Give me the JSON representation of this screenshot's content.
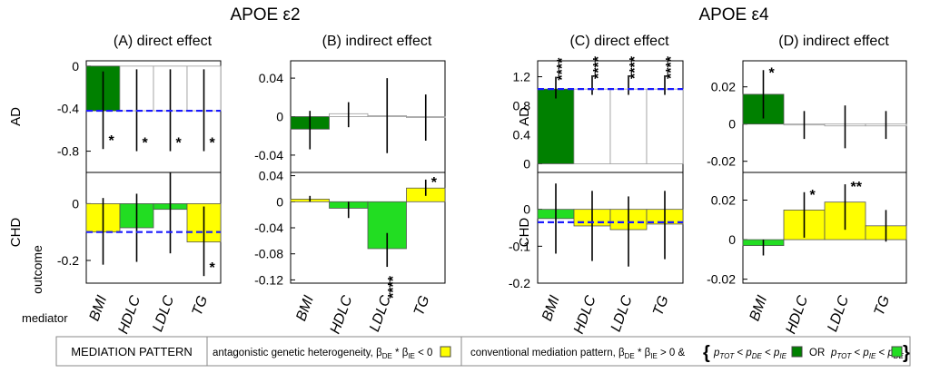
{
  "figure": {
    "group_titles": [
      "APOE ε2",
      "APOE ε4"
    ],
    "row_labels": {
      "row1": "AD",
      "row2": "CHD",
      "outcome": "outcome",
      "mediator": "mediator"
    },
    "categories": [
      "BMI",
      "HDLC",
      "LDLC",
      "TG"
    ],
    "colors": {
      "dark_green": "#008000",
      "light_green": "#22dd22",
      "yellow": "#ffff00",
      "white": "#ffffff",
      "dashed_line": "#1a1aff"
    }
  },
  "chart_data": [
    {
      "id": "A-AD",
      "type": "bar",
      "title": "(A) direct effect",
      "ylabel": "AD",
      "categories": [
        "BMI",
        "HDLC",
        "LDLC",
        "TG"
      ],
      "values": [
        -0.42,
        -0.42,
        -0.42,
        -0.42
      ],
      "ci_low": [
        -0.78,
        -0.8,
        -0.8,
        -0.8
      ],
      "ci_high": [
        -0.05,
        -0.03,
        -0.03,
        -0.03
      ],
      "colors": [
        "dark",
        "white",
        "white",
        "white"
      ],
      "stars": [
        "*",
        "*",
        "*",
        "*"
      ],
      "star_side": [
        "below",
        "below",
        "below",
        "below"
      ],
      "reference_line": -0.42,
      "ylim": [
        -1.0,
        0.05
      ],
      "yticks": [
        0,
        -0.4,
        -0.8
      ],
      "ytick_labels": [
        "0",
        "-0.4",
        "-0.8"
      ]
    },
    {
      "id": "A-CHD",
      "type": "bar",
      "ylabel": "CHD",
      "categories": [
        "BMI",
        "HDLC",
        "LDLC",
        "TG"
      ],
      "values": [
        -0.1,
        -0.085,
        -0.02,
        -0.135
      ],
      "ci_low": [
        -0.215,
        -0.205,
        -0.175,
        -0.255
      ],
      "ci_high": [
        0.02,
        0.035,
        0.11,
        -0.01
      ],
      "colors": [
        "yellow",
        "light",
        "light",
        "yellow"
      ],
      "stars": [
        "",
        "",
        "",
        "*"
      ],
      "star_side": [
        "",
        "",
        "",
        "below"
      ],
      "reference_line": -0.1,
      "ylim": [
        -0.28,
        0.11
      ],
      "yticks": [
        0,
        -0.1,
        -0.2
      ],
      "ytick_labels": [
        "0",
        "",
        "-0.2"
      ]
    },
    {
      "id": "B-AD",
      "type": "bar",
      "title": "(B) indirect effect",
      "ylabel": "",
      "categories": [
        "BMI",
        "HDLC",
        "LDLC",
        "TG"
      ],
      "values": [
        -0.013,
        0.003,
        0.001,
        -0.001
      ],
      "ci_low": [
        -0.034,
        -0.011,
        -0.038,
        -0.025
      ],
      "ci_high": [
        0.006,
        0.015,
        0.04,
        0.023
      ],
      "colors": [
        "dark",
        "white",
        "white",
        "white"
      ],
      "stars": [
        "",
        "",
        "",
        ""
      ],
      "star_side": [
        "",
        "",
        "",
        ""
      ],
      "ylim": [
        -0.058,
        0.058
      ],
      "yticks": [
        0.04,
        0,
        -0.04
      ],
      "ytick_labels": [
        "0.04",
        "0",
        "-0.04"
      ]
    },
    {
      "id": "B-CHD",
      "type": "bar",
      "ylabel": "",
      "categories": [
        "BMI",
        "HDLC",
        "LDLC",
        "TG"
      ],
      "values": [
        0.004,
        -0.01,
        -0.072,
        0.021
      ],
      "ci_low": [
        0.0,
        -0.025,
        -0.1,
        0.009
      ],
      "ci_high": [
        0.009,
        0.0,
        -0.048,
        0.034
      ],
      "colors": [
        "yellow",
        "light",
        "light",
        "yellow"
      ],
      "stars": [
        "",
        "",
        "****",
        "*"
      ],
      "star_side": [
        "",
        "",
        "below",
        "above"
      ],
      "ylim": [
        -0.125,
        0.045
      ],
      "yticks": [
        0.04,
        0,
        -0.04,
        -0.08,
        -0.12
      ],
      "ytick_labels": [
        "0.04",
        "0",
        "-0.04",
        "-0.08",
        "-0.12"
      ]
    },
    {
      "id": "C-AD",
      "type": "bar",
      "title": "(C) direct effect",
      "ylabel": "AD",
      "categories": [
        "BMI",
        "HDLC",
        "LDLC",
        "TG"
      ],
      "values": [
        1.03,
        1.03,
        1.03,
        1.03
      ],
      "ci_low": [
        0.9,
        0.95,
        0.95,
        0.95
      ],
      "ci_high": [
        1.2,
        1.22,
        1.22,
        1.22
      ],
      "colors": [
        "dark",
        "white",
        "white",
        "white"
      ],
      "stars": [
        "****",
        "****",
        "****",
        "****"
      ],
      "star_side": [
        "above",
        "above",
        "above",
        "above"
      ],
      "reference_line": 1.03,
      "ylim": [
        -0.12,
        1.42
      ],
      "yticks": [
        1.2,
        0.8,
        0.4,
        0
      ],
      "ytick_labels": [
        "1.2",
        "0.8",
        "0.4",
        "0"
      ]
    },
    {
      "id": "C-CHD",
      "type": "bar",
      "ylabel": "CHD",
      "categories": [
        "BMI",
        "HDLC",
        "LDLC",
        "TG"
      ],
      "values": [
        -0.025,
        -0.045,
        -0.055,
        -0.04
      ],
      "ci_low": [
        -0.12,
        -0.14,
        -0.155,
        -0.135
      ],
      "ci_high": [
        0.07,
        0.05,
        0.035,
        0.05
      ],
      "colors": [
        "light",
        "yellow",
        "yellow",
        "yellow"
      ],
      "stars": [
        "",
        "",
        "",
        ""
      ],
      "star_side": [
        "",
        "",
        "",
        ""
      ],
      "reference_line": -0.035,
      "ylim": [
        -0.2,
        0.1
      ],
      "yticks": [
        0,
        -0.1,
        -0.2
      ],
      "ytick_labels": [
        "0",
        "-0.1",
        "-0.2"
      ]
    },
    {
      "id": "D-AD",
      "type": "bar",
      "title": "(D) indirect effect",
      "ylabel": "",
      "categories": [
        "BMI",
        "HDLC",
        "LDLC",
        "TG"
      ],
      "values": [
        0.016,
        -0.0005,
        -0.001,
        -0.001
      ],
      "ci_low": [
        0.003,
        -0.008,
        -0.013,
        -0.008
      ],
      "ci_high": [
        0.029,
        0.007,
        0.01,
        0.007
      ],
      "colors": [
        "dark",
        "white",
        "white",
        "white"
      ],
      "stars": [
        "*",
        "",
        "",
        ""
      ],
      "star_side": [
        "above",
        "",
        "",
        ""
      ],
      "ylim": [
        -0.026,
        0.034
      ],
      "yticks": [
        0.02,
        0,
        -0.02
      ],
      "ytick_labels": [
        "0.02",
        "0",
        "-0.02"
      ]
    },
    {
      "id": "D-CHD",
      "type": "bar",
      "ylabel": "",
      "categories": [
        "BMI",
        "HDLC",
        "LDLC",
        "TG"
      ],
      "values": [
        -0.003,
        0.015,
        0.019,
        0.007
      ],
      "ci_low": [
        -0.008,
        0.001,
        0.005,
        -0.001
      ],
      "ci_high": [
        0.0,
        0.024,
        0.028,
        0.015
      ],
      "colors": [
        "light",
        "yellow",
        "yellow",
        "yellow"
      ],
      "stars": [
        "",
        "*",
        "**",
        ""
      ],
      "star_side": [
        "",
        "above",
        "above",
        ""
      ],
      "ylim": [
        -0.022,
        0.034
      ],
      "yticks": [
        0.02,
        0,
        -0.02
      ],
      "ytick_labels": [
        "0.02",
        "0",
        "-0.02"
      ]
    }
  ],
  "legend": {
    "title": "MEDIATION PATTERN",
    "antagonistic": "antagonistic genetic heterogeneity, β",
    "antagonistic_tail": " < 0",
    "conventional": "conventional mediation pattern, β",
    "conventional_tail": " > 0 &",
    "de": "DE",
    "ie": "IE",
    "times": " * β",
    "brace_open": "{",
    "brace_close": "}",
    "or": "OR",
    "p": "p",
    "tot": "TOT",
    "lt": " < ",
    "tot_de": "p",
    "cond1_symbols": "",
    "cond2_symbols": ""
  }
}
